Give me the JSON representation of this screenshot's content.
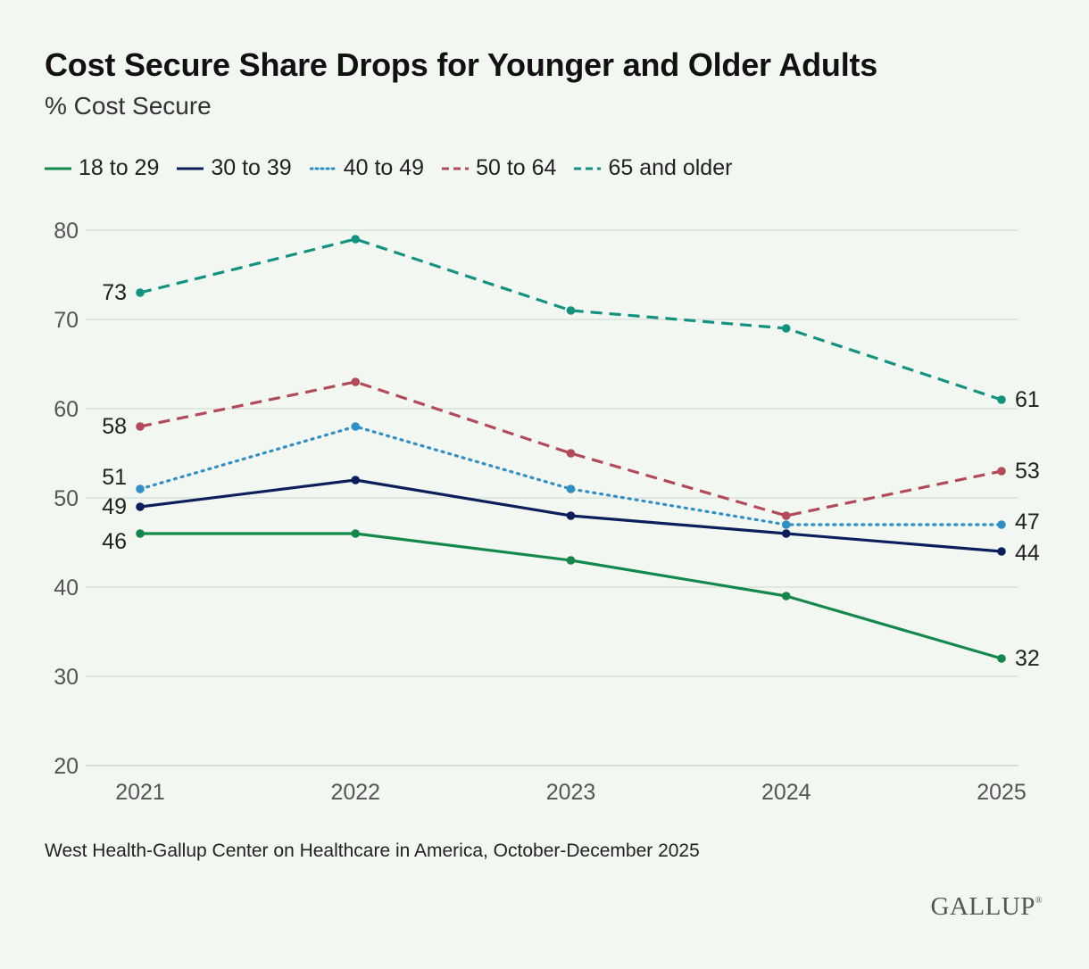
{
  "header": {
    "title": "Cost Secure Share Drops for Younger and Older Adults",
    "subtitle": "% Cost Secure"
  },
  "footer": {
    "source": "West Health-Gallup Center on Healthcare in America, October-December 2025",
    "logo": "GALLUP"
  },
  "chart_data": {
    "type": "line",
    "title": "Cost Secure Share Drops for Younger and Older Adults",
    "subtitle": "% Cost Secure",
    "xlabel": "",
    "ylabel": "",
    "categories": [
      "2021",
      "2022",
      "2023",
      "2024",
      "2025"
    ],
    "ylim": [
      20,
      80
    ],
    "yticks": [
      20,
      30,
      40,
      50,
      60,
      70,
      80
    ],
    "grid": true,
    "legend_position": "top-left",
    "series": [
      {
        "name": "18 to 29",
        "color": "#14884b",
        "style": "solid",
        "values": [
          46,
          46,
          43,
          39,
          32
        ]
      },
      {
        "name": "30 to 39",
        "color": "#0c1f5c",
        "style": "solid",
        "values": [
          49,
          52,
          48,
          46,
          44
        ]
      },
      {
        "name": "40 to 49",
        "color": "#2f8fc6",
        "style": "dotted",
        "values": [
          51,
          58,
          51,
          47,
          47
        ]
      },
      {
        "name": "50 to 64",
        "color": "#b24a5a",
        "style": "dashed",
        "values": [
          58,
          63,
          55,
          48,
          53
        ]
      },
      {
        "name": "65 and older",
        "color": "#13937f",
        "style": "dashed",
        "values": [
          73,
          79,
          71,
          69,
          61
        ]
      }
    ],
    "start_labels": [
      {
        "series": "18 to 29",
        "text": "46"
      },
      {
        "series": "30 to 39",
        "text": "49"
      },
      {
        "series": "40 to 49",
        "text": "51"
      },
      {
        "series": "50 to 64",
        "text": "58"
      },
      {
        "series": "65 and older",
        "text": "73"
      }
    ],
    "end_labels": [
      {
        "series": "18 to 29",
        "text": "32"
      },
      {
        "series": "30 to 39",
        "text": "44"
      },
      {
        "series": "40 to 49",
        "text": "47"
      },
      {
        "series": "50 to 64",
        "text": "53"
      },
      {
        "series": "65 and older",
        "text": "61"
      }
    ]
  }
}
